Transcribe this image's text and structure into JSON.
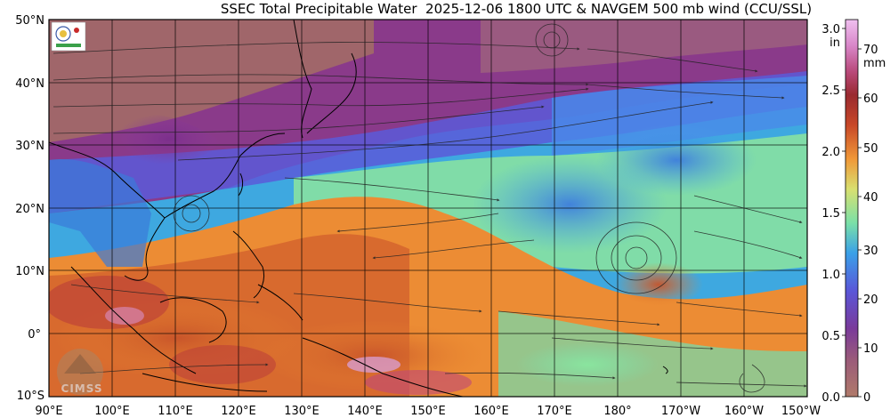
{
  "title": "SSEC Total Precipitable Water  2025-12-06 1800 UTC & NAVGEM 500 mb wind (CCU/SSL)",
  "map": {
    "lat_labels": [
      "50°N",
      "40°N",
      "30°N",
      "20°N",
      "10°N",
      "0°",
      "10°S"
    ],
    "lon_labels": [
      "90°E",
      "100°E",
      "110°E",
      "120°E",
      "130°E",
      "140°E",
      "150°E",
      "160°E",
      "170°E",
      "180°",
      "170°W",
      "160°W",
      "150°W"
    ],
    "lat_range": [
      -10,
      50
    ],
    "lon_range": [
      90,
      210
    ]
  },
  "colorbar": {
    "in_unit": "in",
    "mm_unit": "mm",
    "in_ticks": [
      "3.0",
      "2.5",
      "2.0",
      "1.5",
      "1.0",
      "0.5",
      "0.0"
    ],
    "mm_ticks": [
      "70",
      "60",
      "50",
      "40",
      "30",
      "20",
      "10",
      "0"
    ],
    "colors": [
      "#b07a6a",
      "#8a3a8a",
      "#5a56d8",
      "#3aa0e8",
      "#7ae0a8",
      "#e8d860",
      "#f09838",
      "#c84828",
      "#b02830",
      "#d86aa8",
      "#e8b0e8"
    ]
  },
  "logos": {
    "ccu_logo": "ccu-ssl-logo",
    "cimss_text": "CIMSS"
  }
}
